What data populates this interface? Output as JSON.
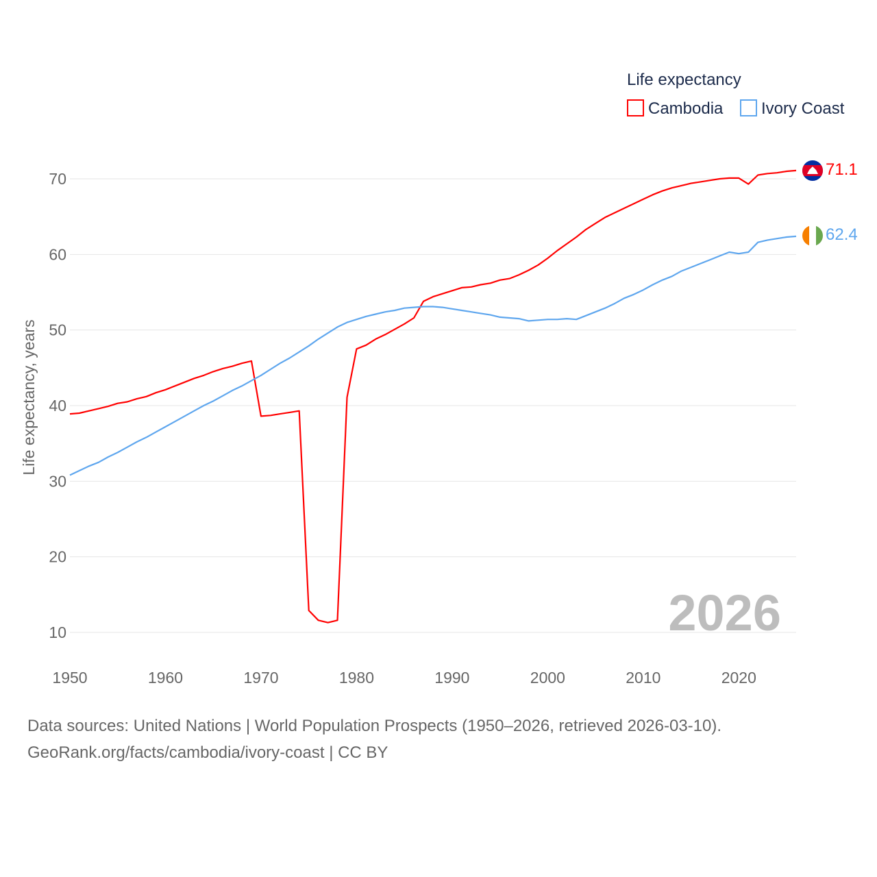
{
  "chart_data": {
    "type": "line",
    "title": "",
    "xlabel": "",
    "ylabel": "Life expectancy, years",
    "xlim": [
      1950,
      2026
    ],
    "ylim": [
      10,
      70
    ],
    "yticks": [
      10,
      20,
      30,
      40,
      50,
      60,
      70
    ],
    "xticks": [
      1950,
      1960,
      1970,
      1980,
      1990,
      2000,
      2010,
      2020
    ],
    "grid": true,
    "legend_title": "Life expectancy",
    "legend_position": "top-right",
    "year_label": "2026",
    "x": [
      1950,
      1951,
      1952,
      1953,
      1954,
      1955,
      1956,
      1957,
      1958,
      1959,
      1960,
      1961,
      1962,
      1963,
      1964,
      1965,
      1966,
      1967,
      1968,
      1969,
      1970,
      1971,
      1972,
      1973,
      1974,
      1975,
      1976,
      1977,
      1978,
      1979,
      1980,
      1981,
      1982,
      1983,
      1984,
      1985,
      1986,
      1987,
      1988,
      1989,
      1990,
      1991,
      1992,
      1993,
      1994,
      1995,
      1996,
      1997,
      1998,
      1999,
      2000,
      2001,
      2002,
      2003,
      2004,
      2005,
      2006,
      2007,
      2008,
      2009,
      2010,
      2011,
      2012,
      2013,
      2014,
      2015,
      2016,
      2017,
      2018,
      2019,
      2020,
      2021,
      2022,
      2023,
      2024,
      2025,
      2026
    ],
    "series": [
      {
        "name": "Cambodia",
        "color": "#ff0000",
        "end_label": "71.1",
        "flag": "cambodia-flag",
        "values": [
          38.9,
          39.0,
          39.3,
          39.6,
          39.9,
          40.3,
          40.5,
          40.9,
          41.2,
          41.7,
          42.1,
          42.6,
          43.1,
          43.6,
          44.0,
          44.5,
          44.9,
          45.2,
          45.6,
          45.9,
          38.6,
          38.7,
          38.9,
          39.1,
          39.3,
          12.9,
          11.6,
          11.3,
          11.6,
          41.1,
          47.5,
          48.0,
          48.8,
          49.4,
          50.1,
          50.8,
          51.6,
          53.8,
          54.4,
          54.8,
          55.2,
          55.6,
          55.7,
          56.0,
          56.2,
          56.6,
          56.8,
          57.3,
          57.9,
          58.6,
          59.5,
          60.5,
          61.4,
          62.3,
          63.3,
          64.1,
          64.9,
          65.5,
          66.1,
          66.7,
          67.3,
          67.9,
          68.4,
          68.8,
          69.1,
          69.4,
          69.6,
          69.8,
          70.0,
          70.1,
          70.1,
          69.3,
          70.5,
          70.7,
          70.8,
          71.0,
          71.1
        ]
      },
      {
        "name": "Ivory Coast",
        "color": "#5ea6ee",
        "end_label": "62.4",
        "flag": "ivory-coast-flag",
        "values": [
          30.8,
          31.4,
          32.0,
          32.5,
          33.2,
          33.8,
          34.5,
          35.2,
          35.8,
          36.5,
          37.2,
          37.9,
          38.6,
          39.3,
          40.0,
          40.6,
          41.3,
          42.0,
          42.6,
          43.3,
          44.0,
          44.8,
          45.6,
          46.3,
          47.1,
          47.9,
          48.8,
          49.6,
          50.4,
          51.0,
          51.4,
          51.8,
          52.1,
          52.4,
          52.6,
          52.9,
          53.0,
          53.1,
          53.1,
          53.0,
          52.8,
          52.6,
          52.4,
          52.2,
          52.0,
          51.7,
          51.6,
          51.5,
          51.2,
          51.3,
          51.4,
          51.4,
          51.5,
          51.4,
          51.9,
          52.4,
          52.9,
          53.5,
          54.2,
          54.7,
          55.3,
          56.0,
          56.6,
          57.1,
          57.8,
          58.3,
          58.8,
          59.3,
          59.8,
          60.3,
          60.1,
          60.3,
          61.6,
          61.9,
          62.1,
          62.3,
          62.4
        ]
      }
    ]
  },
  "footer": {
    "line1": "Data sources: United Nations | World Population Prospects (1950–2026, retrieved 2026-03-10).",
    "line2": "GeoRank.org/facts/cambodia/ivory-coast | CC BY"
  }
}
